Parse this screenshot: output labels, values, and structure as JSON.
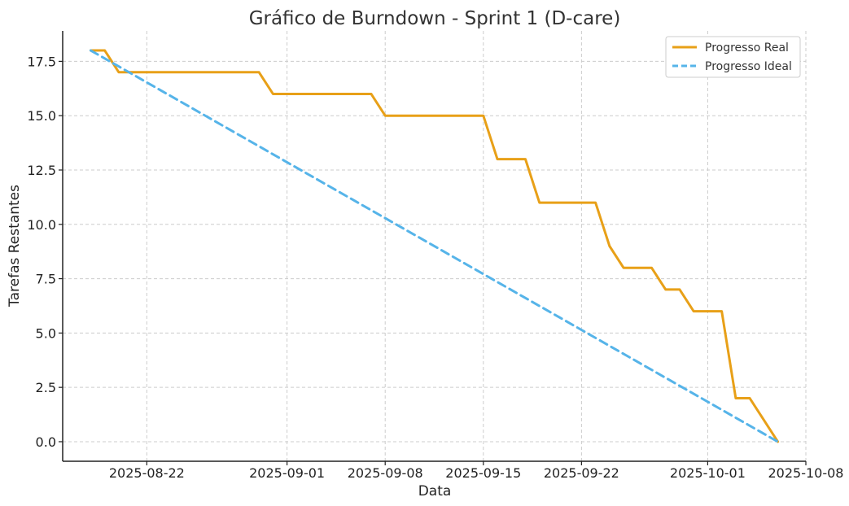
{
  "chart_data": {
    "type": "line",
    "title": "Gráfico de Burndown - Sprint 1 (D-care)",
    "xlabel": "Data",
    "ylabel": "Tarefas Restantes",
    "xlim": [
      "2025-08-16",
      "2025-10-08"
    ],
    "ylim": [
      -0.9,
      18.9
    ],
    "x_ticks": [
      "2025-08-22",
      "2025-09-01",
      "2025-09-08",
      "2025-09-15",
      "2025-09-22",
      "2025-10-01",
      "2025-10-08"
    ],
    "y_ticks": [
      0.0,
      2.5,
      5.0,
      7.5,
      10.0,
      12.5,
      15.0,
      17.5
    ],
    "y_tick_labels": [
      "0.0",
      "2.5",
      "5.0",
      "7.5",
      "10.0",
      "12.5",
      "15.0",
      "17.5"
    ],
    "grid": true,
    "legend_position": "top-right",
    "series": [
      {
        "name": "Progresso Real",
        "color": "#E8A018",
        "style": "solid",
        "points": [
          [
            "2025-08-18",
            18
          ],
          [
            "2025-08-19",
            18
          ],
          [
            "2025-08-20",
            17
          ],
          [
            "2025-08-21",
            17
          ],
          [
            "2025-08-22",
            17
          ],
          [
            "2025-08-23",
            17
          ],
          [
            "2025-08-24",
            17
          ],
          [
            "2025-08-25",
            17
          ],
          [
            "2025-08-26",
            17
          ],
          [
            "2025-08-27",
            17
          ],
          [
            "2025-08-28",
            17
          ],
          [
            "2025-08-29",
            17
          ],
          [
            "2025-08-30",
            17
          ],
          [
            "2025-08-31",
            16
          ],
          [
            "2025-09-01",
            16
          ],
          [
            "2025-09-02",
            16
          ],
          [
            "2025-09-03",
            16
          ],
          [
            "2025-09-04",
            16
          ],
          [
            "2025-09-05",
            16
          ],
          [
            "2025-09-06",
            16
          ],
          [
            "2025-09-07",
            16
          ],
          [
            "2025-09-08",
            15
          ],
          [
            "2025-09-09",
            15
          ],
          [
            "2025-09-10",
            15
          ],
          [
            "2025-09-11",
            15
          ],
          [
            "2025-09-12",
            15
          ],
          [
            "2025-09-13",
            15
          ],
          [
            "2025-09-14",
            15
          ],
          [
            "2025-09-15",
            15
          ],
          [
            "2025-09-16",
            13
          ],
          [
            "2025-09-17",
            13
          ],
          [
            "2025-09-18",
            13
          ],
          [
            "2025-09-19",
            11
          ],
          [
            "2025-09-20",
            11
          ],
          [
            "2025-09-21",
            11
          ],
          [
            "2025-09-22",
            11
          ],
          [
            "2025-09-23",
            11
          ],
          [
            "2025-09-24",
            9
          ],
          [
            "2025-09-25",
            8
          ],
          [
            "2025-09-26",
            8
          ],
          [
            "2025-09-27",
            8
          ],
          [
            "2025-09-28",
            7
          ],
          [
            "2025-09-29",
            7
          ],
          [
            "2025-09-30",
            6
          ],
          [
            "2025-10-01",
            6
          ],
          [
            "2025-10-02",
            6
          ],
          [
            "2025-10-03",
            2
          ],
          [
            "2025-10-04",
            2
          ],
          [
            "2025-10-05",
            1
          ],
          [
            "2025-10-06",
            0
          ]
        ]
      },
      {
        "name": "Progresso Ideal",
        "color": "#56B4E9",
        "style": "dashed",
        "points": [
          [
            "2025-08-18",
            18
          ],
          [
            "2025-10-06",
            0
          ]
        ]
      }
    ]
  }
}
